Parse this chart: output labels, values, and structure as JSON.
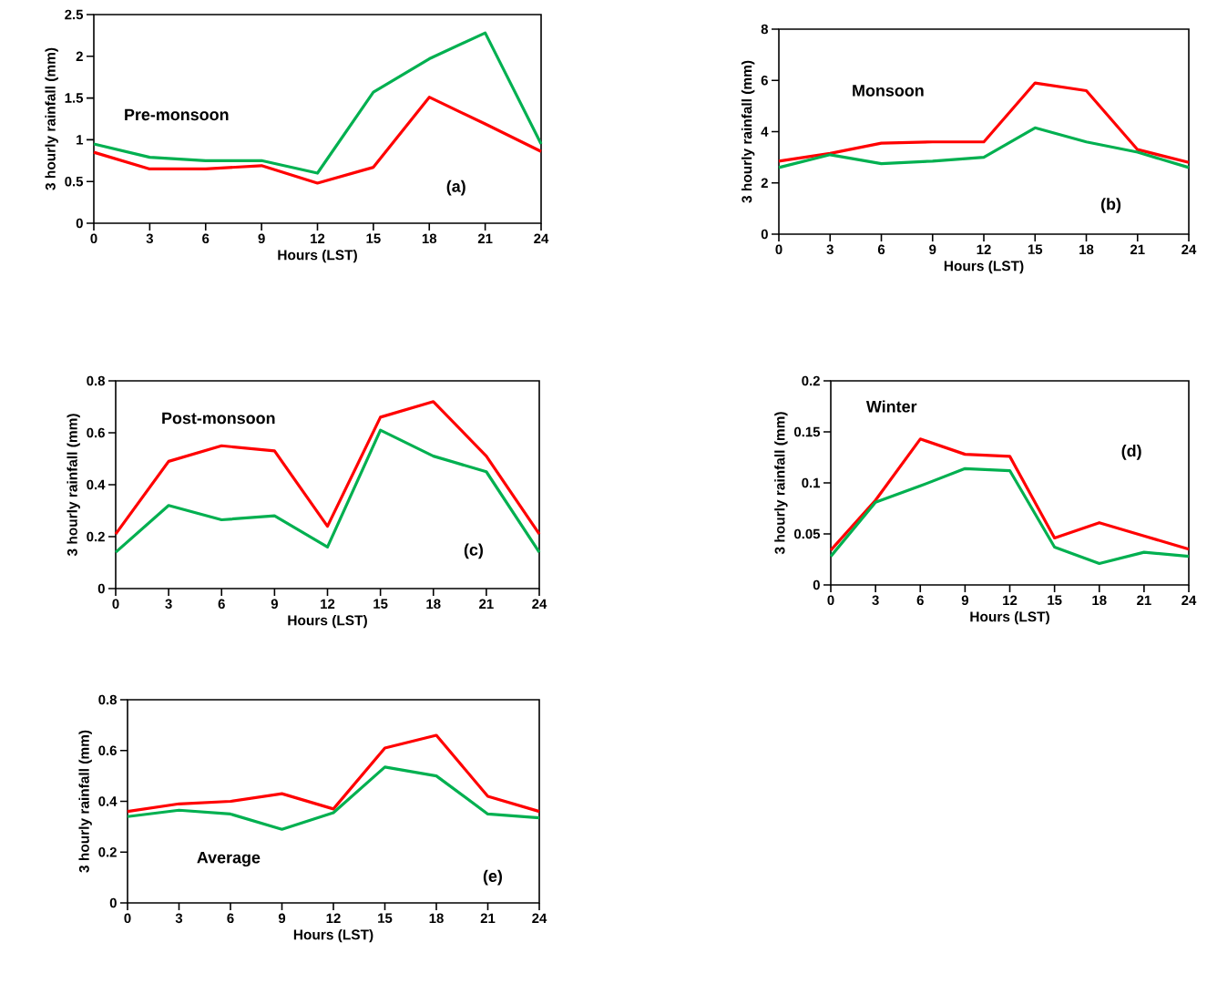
{
  "chart_data": [
    {
      "type": "line",
      "xlabel": "Hours (LST)",
      "ylabel": "3 hourly rainfall (mm)",
      "annotations": [
        "Pre-monsoon",
        "(a)"
      ],
      "x": [
        0,
        3,
        6,
        9,
        12,
        15,
        18,
        21,
        24
      ],
      "xlim": [
        0,
        24
      ],
      "xticks": [
        0,
        3,
        6,
        9,
        12,
        15,
        18,
        21,
        24
      ],
      "ylim": [
        0,
        2.5
      ],
      "yticks": [
        0,
        0.5,
        1,
        1.5,
        2,
        2.5
      ],
      "series": [
        {
          "color": "#ff0000",
          "values": [
            0.85,
            0.65,
            0.65,
            0.69,
            0.48,
            0.67,
            1.51,
            1.19,
            0.86
          ]
        },
        {
          "color": "#00b050",
          "values": [
            0.95,
            0.79,
            0.75,
            0.75,
            0.6,
            1.57,
            1.97,
            2.28,
            0.95
          ]
        }
      ]
    },
    {
      "type": "line",
      "xlabel": "Hours (LST)",
      "ylabel": "3 hourly rainfall (mm)",
      "annotations": [
        "Monsoon",
        "(b)"
      ],
      "x": [
        0,
        3,
        6,
        9,
        12,
        15,
        18,
        21,
        24
      ],
      "xlim": [
        0,
        24
      ],
      "xticks": [
        0,
        3,
        6,
        9,
        12,
        15,
        18,
        21,
        24
      ],
      "ylim": [
        0,
        8
      ],
      "yticks": [
        0,
        2,
        4,
        6,
        8
      ],
      "series": [
        {
          "color": "#ff0000",
          "values": [
            2.85,
            3.15,
            3.55,
            3.6,
            3.6,
            5.9,
            5.6,
            3.3,
            2.8
          ]
        },
        {
          "color": "#00b050",
          "values": [
            2.6,
            3.1,
            2.75,
            2.85,
            3.0,
            4.15,
            3.6,
            3.2,
            2.6
          ]
        }
      ]
    },
    {
      "type": "line",
      "xlabel": "Hours (LST)",
      "ylabel": "3 hourly rainfall (mm)",
      "annotations": [
        "Post-monsoon",
        "(c)"
      ],
      "x": [
        0,
        3,
        6,
        9,
        12,
        15,
        18,
        21,
        24
      ],
      "xlim": [
        0,
        24
      ],
      "xticks": [
        0,
        3,
        6,
        9,
        12,
        15,
        18,
        21,
        24
      ],
      "ylim": [
        0,
        0.8
      ],
      "yticks": [
        0,
        0.2,
        0.4,
        0.6,
        0.8
      ],
      "series": [
        {
          "color": "#ff0000",
          "values": [
            0.21,
            0.49,
            0.55,
            0.53,
            0.24,
            0.66,
            0.72,
            0.51,
            0.21
          ]
        },
        {
          "color": "#00b050",
          "values": [
            0.14,
            0.32,
            0.265,
            0.28,
            0.16,
            0.61,
            0.51,
            0.45,
            0.14
          ]
        }
      ]
    },
    {
      "type": "line",
      "xlabel": "Hours (LST)",
      "ylabel": "3 hourly rainfall (mm)",
      "annotations": [
        "Winter",
        "(d)"
      ],
      "x": [
        0,
        3,
        6,
        9,
        12,
        15,
        18,
        21,
        24
      ],
      "xlim": [
        0,
        24
      ],
      "xticks": [
        0,
        3,
        6,
        9,
        12,
        15,
        18,
        21,
        24
      ],
      "ylim": [
        0,
        0.2
      ],
      "yticks": [
        0,
        0.05,
        0.1,
        0.15,
        0.2
      ],
      "series": [
        {
          "color": "#ff0000",
          "values": [
            0.034,
            0.083,
            0.143,
            0.128,
            0.126,
            0.046,
            0.061,
            0.048,
            0.035
          ]
        },
        {
          "color": "#00b050",
          "values": [
            0.028,
            0.081,
            0.097,
            0.114,
            0.112,
            0.037,
            0.021,
            0.032,
            0.028
          ]
        }
      ]
    },
    {
      "type": "line",
      "xlabel": "Hours (LST)",
      "ylabel": "3 hourly rainfall (mm)",
      "annotations": [
        "Average",
        "(e)"
      ],
      "x": [
        0,
        3,
        6,
        9,
        12,
        15,
        18,
        21,
        24
      ],
      "xlim": [
        0,
        24
      ],
      "xticks": [
        0,
        3,
        6,
        9,
        12,
        15,
        18,
        21,
        24
      ],
      "ylim": [
        0,
        0.8
      ],
      "yticks": [
        0,
        0.2,
        0.4,
        0.6,
        0.8
      ],
      "series": [
        {
          "color": "#ff0000",
          "values": [
            0.36,
            0.39,
            0.4,
            0.43,
            0.37,
            0.61,
            0.66,
            0.42,
            0.36
          ]
        },
        {
          "color": "#00b050",
          "values": [
            0.34,
            0.365,
            0.35,
            0.29,
            0.355,
            0.535,
            0.5,
            0.35,
            0.335
          ]
        }
      ]
    }
  ]
}
